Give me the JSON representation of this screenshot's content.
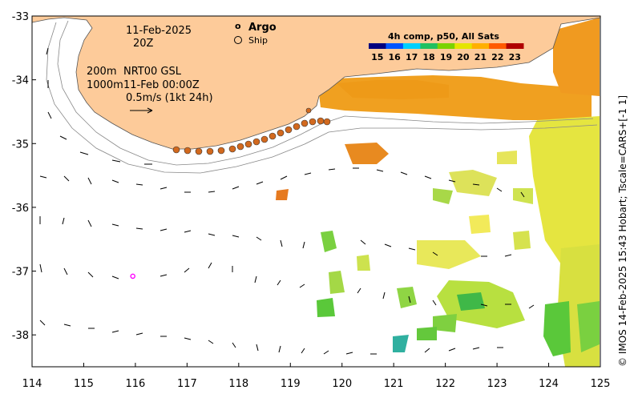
{
  "map": {
    "date_line": "11-Feb-2025",
    "time_line": "20Z",
    "depth_line1": "200m",
    "depth_line2": "1000m",
    "product_line": "NRT00 GSL",
    "product_time": "11-Feb 00:00Z",
    "vector_scale_text": "0.5m/s (1kt 24h)",
    "credit": "© IMOS 14-Feb-2025 15:43 Hobart; Tscale=CARS+[-1 1]"
  },
  "legend": {
    "argo_symbol": "o",
    "argo_label": "Argo",
    "ship_label": "Ship",
    "colorbar_title": "4h comp, p50, All Sats",
    "colorbar_ticks": [
      "15",
      "16",
      "17",
      "18",
      "19",
      "20",
      "21",
      "22",
      "23"
    ],
    "colorbar_colors": [
      "#00007f",
      "#0055ff",
      "#00d0ff",
      "#20c060",
      "#7ad300",
      "#e5e500",
      "#ffb000",
      "#ff5a00",
      "#b00000"
    ]
  },
  "axes": {
    "x_ticks": [
      "114",
      "115",
      "116",
      "117",
      "118",
      "119",
      "120",
      "121",
      "122",
      "123",
      "124",
      "125"
    ],
    "y_ticks": [
      "-33",
      "-34",
      "-35",
      "-36",
      "-37",
      "-38"
    ],
    "x_range": [
      114,
      125
    ],
    "y_range": [
      -38.5,
      -33
    ]
  },
  "colors": {
    "land": "#fdcb9a",
    "ship_track": "#d2691e",
    "argo": "#ff00ff"
  },
  "argo_float": {
    "lon": 115.95,
    "lat": -37.08
  }
}
